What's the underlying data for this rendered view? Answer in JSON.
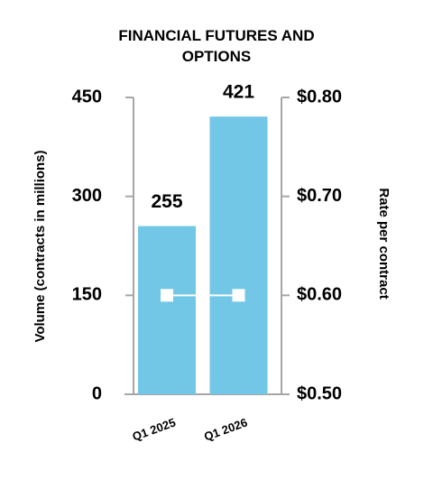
{
  "chart_data": {
    "type": "bar",
    "title": "FINANCIAL FUTURES AND OPTIONS",
    "y_label": "Volume (contracts in millions)",
    "y2_label": "Rate per contract",
    "categories": [
      "Q1 2025",
      "Q1 2026"
    ],
    "series": [
      {
        "type": "bar",
        "color": "#72c7e7",
        "values": [
          255,
          421
        ]
      },
      {
        "type": "line",
        "axis": "y2",
        "color": "#ffffff",
        "values": [
          0.6,
          0.6
        ]
      }
    ],
    "ylim": [
      0,
      450
    ],
    "yticks": [
      0,
      150,
      300,
      450
    ],
    "y2lim": [
      0.5,
      0.8
    ],
    "y2ticks": [
      {
        "value": 0.5,
        "label": "$0.50"
      },
      {
        "value": 0.6,
        "label": "$0.60"
      },
      {
        "value": 0.7,
        "label": "$0.70"
      },
      {
        "value": 0.8,
        "label": "$0.80"
      }
    ]
  }
}
